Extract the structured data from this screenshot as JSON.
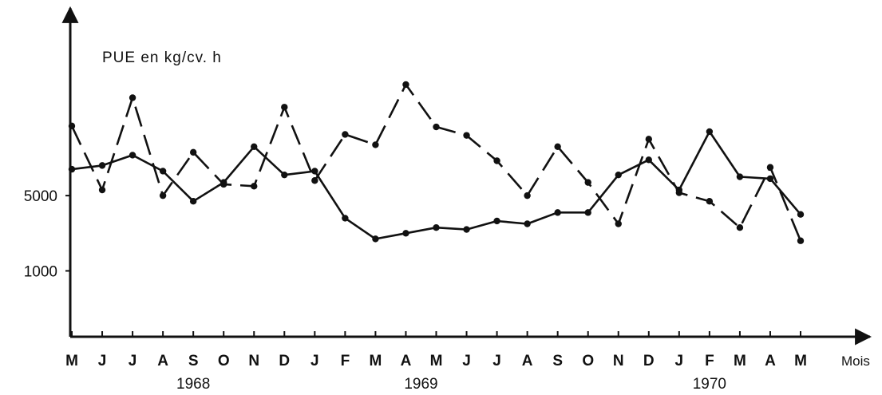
{
  "chart_data": {
    "type": "line",
    "ylabel": "PUE en kg/cv. h",
    "xlabel": "Mois",
    "x": [
      "M",
      "J",
      "J",
      "A",
      "S",
      "O",
      "N",
      "D",
      "J",
      "F",
      "M",
      "A",
      "M",
      "J",
      "J",
      "A",
      "S",
      "O",
      "N",
      "D",
      "J",
      "F",
      "M",
      "A",
      "M"
    ],
    "years": [
      {
        "label": "1968",
        "center_index": 4
      },
      {
        "label": "1969",
        "center_index": 11.5
      },
      {
        "label": "1970",
        "center_index": 21
      }
    ],
    "yticks": [
      {
        "value": 5000,
        "label": "5000"
      },
      {
        "value": 1000,
        "label": "1000"
      }
    ],
    "ylim": [
      -2500,
      14800
    ],
    "grid": false,
    "series": [
      {
        "style": "solid",
        "values": [
          6400,
          6600,
          7150,
          6300,
          4700,
          5700,
          7600,
          6100,
          6300,
          3800,
          2700,
          3000,
          3300,
          3200,
          3650,
          3500,
          4100,
          4100,
          6100,
          6900,
          5300,
          8400,
          6000,
          5900,
          4000
        ]
      },
      {
        "style": "dashed",
        "values": [
          8700,
          5300,
          10200,
          5000,
          7300,
          5600,
          5500,
          9700,
          5800,
          8250,
          7700,
          10900,
          8650,
          8200,
          6850,
          5000,
          7600,
          5700,
          3500,
          8000,
          5150,
          4700,
          3300,
          6500,
          2600
        ]
      }
    ]
  }
}
